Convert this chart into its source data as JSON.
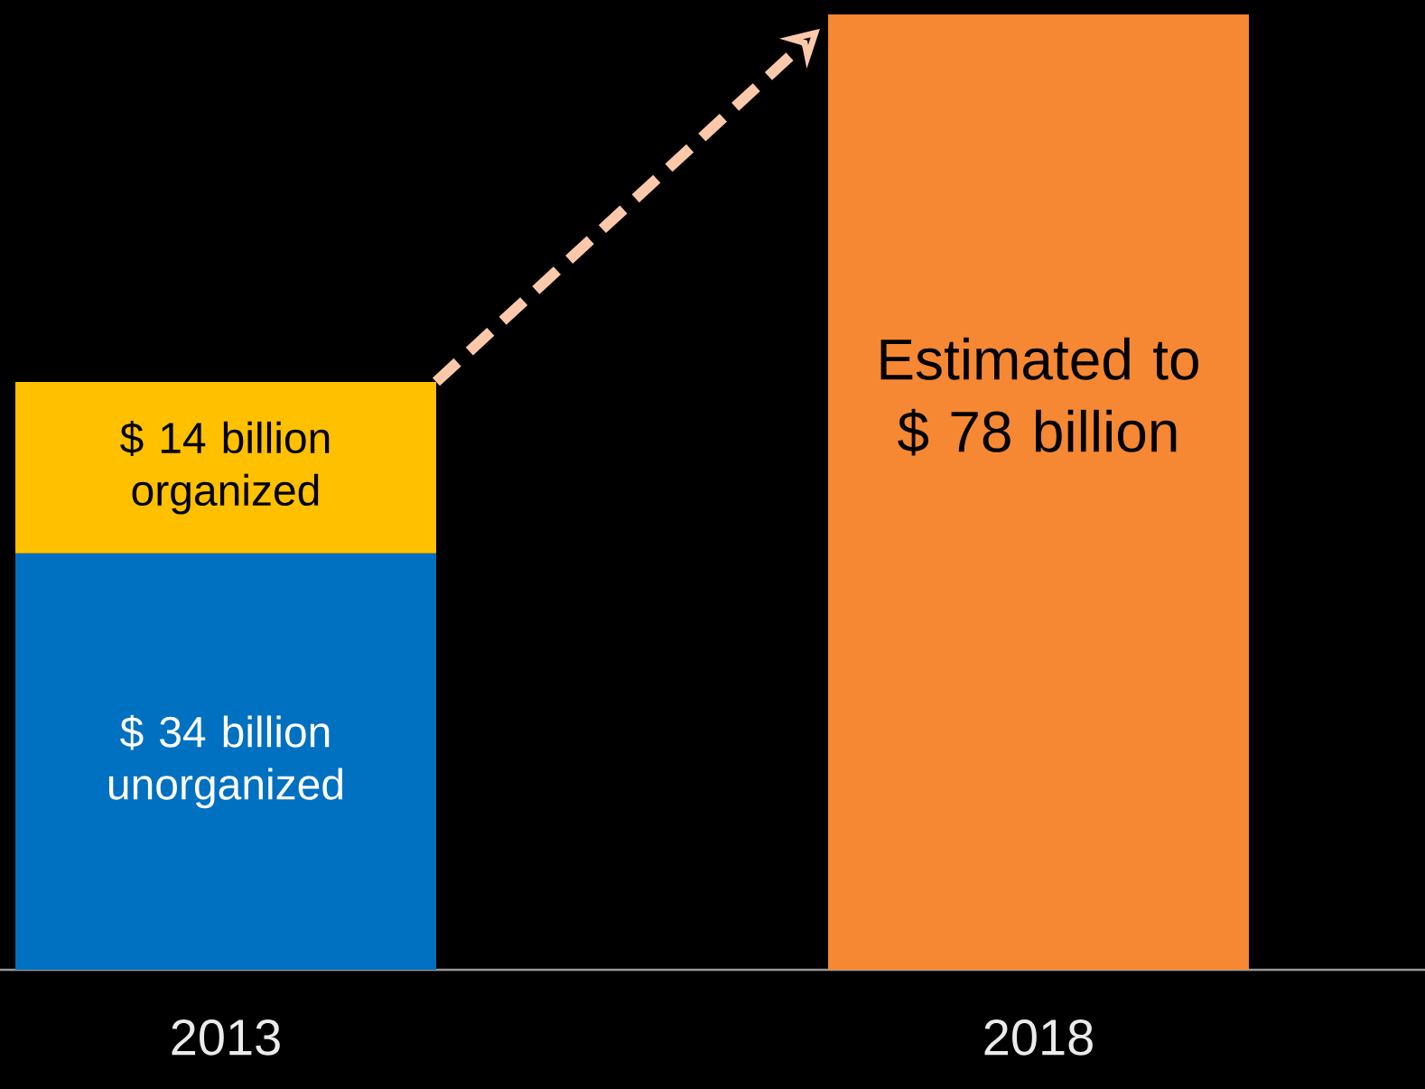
{
  "chart_data": {
    "type": "bar",
    "stacked": true,
    "categories": [
      "2013",
      "2018"
    ],
    "series": [
      {
        "color": "#0070c0",
        "values": [
          34,
          null
        ],
        "value_labels": [
          "$ 34 billion unorganized",
          null
        ]
      },
      {
        "color": "#ffc000",
        "values": [
          14,
          null
        ],
        "value_labels": [
          "$ 14 billion organized",
          null
        ]
      },
      {
        "color": "#f68833",
        "values": [
          null,
          78
        ],
        "value_labels": [
          null,
          "Estimated to $ 78 billion"
        ]
      }
    ]
  }
}
